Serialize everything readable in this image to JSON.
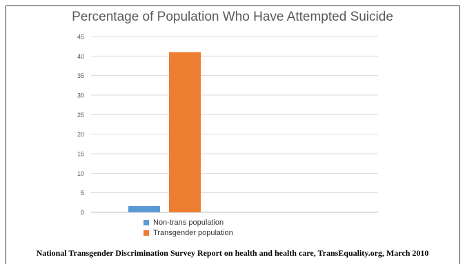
{
  "chart_data": {
    "type": "bar",
    "title": "Percentage of Population Who Have Attempted Suicide",
    "xlabel": "",
    "ylabel": "",
    "ylim": [
      0,
      45
    ],
    "yticks": [
      0,
      5,
      10,
      15,
      20,
      25,
      30,
      35,
      40,
      45
    ],
    "grid": true,
    "legend_position": "bottom",
    "series": [
      {
        "name": "Non-trans population",
        "values": [
          1.6
        ],
        "color": "#5B9BD5"
      },
      {
        "name": "Transgender population",
        "values": [
          41
        ],
        "color": "#ED7D31"
      }
    ]
  },
  "footer": {
    "source": "National Transgender Discrimination Survey Report on health and health care, TransEquality.org, March 2010"
  }
}
